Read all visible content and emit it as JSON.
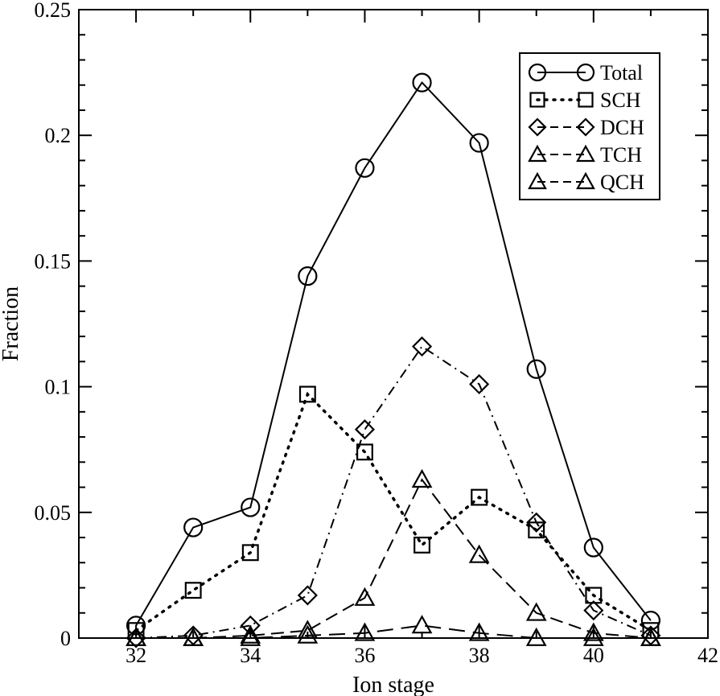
{
  "chart_data": {
    "type": "line",
    "title": "",
    "xlabel": "Ion stage",
    "ylabel": "Fraction",
    "xlim": [
      31,
      42
    ],
    "ylim": [
      0,
      0.25
    ],
    "xticks": [
      32,
      34,
      36,
      38,
      40,
      42
    ],
    "xtick_labels": [
      "32",
      "34",
      "36",
      "38",
      "40",
      "42"
    ],
    "yticks": [
      0,
      0.05,
      0.1,
      0.15,
      0.2,
      0.25
    ],
    "ytick_labels": [
      "0",
      "0.05",
      "0.1",
      "0.15",
      "0.2",
      "0.25"
    ],
    "grid": false,
    "legend_position": "top-right",
    "series": [
      {
        "name": "Total",
        "marker": "circle",
        "line_style": "solid",
        "x": [
          32,
          33,
          34,
          35,
          36,
          37,
          38,
          39,
          40,
          41
        ],
        "y": [
          0.005,
          0.044,
          0.052,
          0.144,
          0.187,
          0.221,
          0.197,
          0.107,
          0.036,
          0.007
        ]
      },
      {
        "name": "SCH",
        "marker": "square",
        "line_style": "dotted",
        "x": [
          32,
          33,
          34,
          35,
          36,
          37,
          38,
          39,
          40,
          41
        ],
        "y": [
          0.003,
          0.019,
          0.034,
          0.097,
          0.074,
          0.037,
          0.056,
          0.043,
          0.017,
          0.003
        ]
      },
      {
        "name": "DCH",
        "marker": "diamond",
        "line_style": "dashdot",
        "x": [
          32,
          33,
          34,
          35,
          36,
          37,
          38,
          39,
          40,
          41
        ],
        "y": [
          0.0,
          0.001,
          0.005,
          0.017,
          0.083,
          0.116,
          0.101,
          0.046,
          0.011,
          0.001
        ]
      },
      {
        "name": "TCH",
        "marker": "triangle",
        "line_style": "dashed",
        "x": [
          32,
          33,
          34,
          35,
          36,
          37,
          38,
          39,
          40,
          41
        ],
        "y": [
          0.0,
          0.0,
          0.001,
          0.003,
          0.016,
          0.063,
          0.033,
          0.01,
          0.002,
          0.0
        ]
      },
      {
        "name": "QCH",
        "marker": "triangle",
        "line_style": "longdash",
        "x": [
          32,
          33,
          34,
          35,
          36,
          37,
          38,
          39,
          40,
          41
        ],
        "y": [
          0.0,
          0.0,
          0.0,
          0.001,
          0.002,
          0.005,
          0.002,
          0.0,
          0.0,
          0.0
        ]
      }
    ]
  }
}
